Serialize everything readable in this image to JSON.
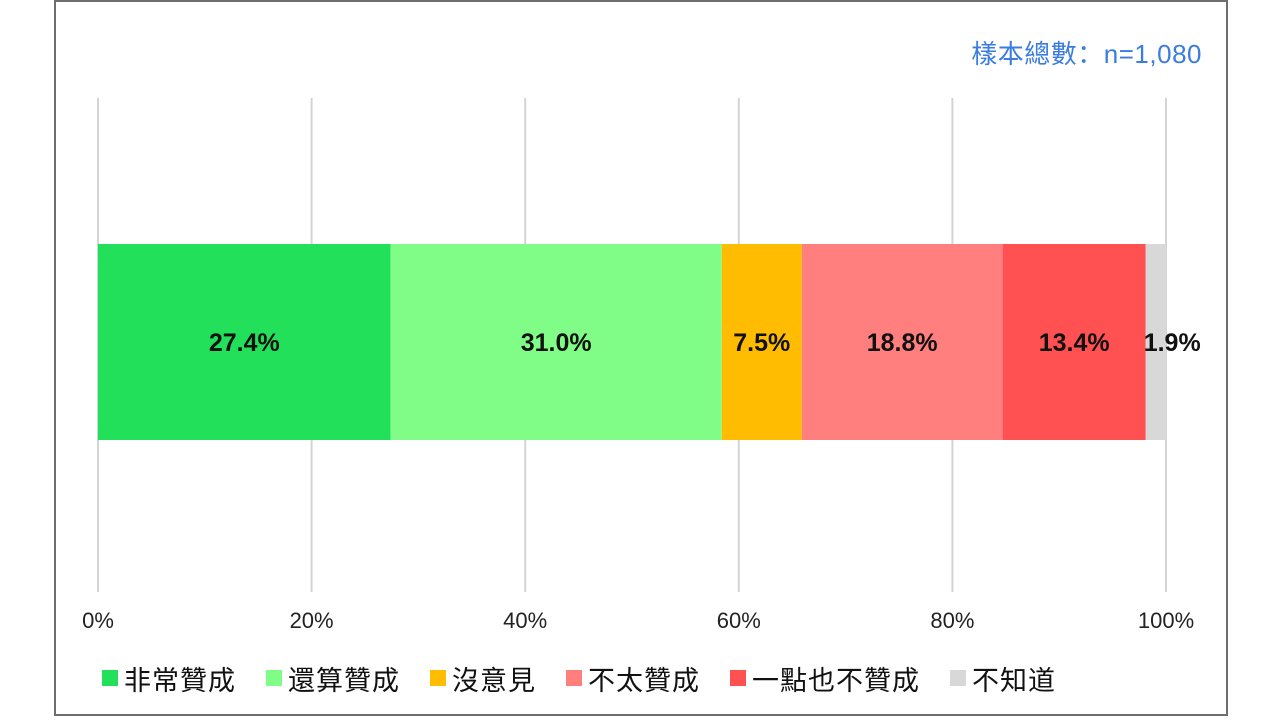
{
  "chart_data": {
    "type": "bar",
    "orientation": "horizontal-stacked",
    "sample_note": "樣本總數：n=1,080",
    "series": [
      {
        "name": "非常贊成",
        "value": 27.4,
        "label": "27.4%",
        "color": "#22e05a"
      },
      {
        "name": "還算贊成",
        "value": 31.0,
        "label": "31.0%",
        "color": "#80fd86"
      },
      {
        "name": "沒意見",
        "value": 7.5,
        "label": "7.5%",
        "color": "#ffbc00"
      },
      {
        "name": "不太贊成",
        "value": 18.8,
        "label": "18.8%",
        "color": "#ff7f7f"
      },
      {
        "name": "一點也不贊成",
        "value": 13.4,
        "label": "13.4%",
        "color": "#ff5151"
      },
      {
        "name": "不知道",
        "value": 1.9,
        "label": "1.9%",
        "color": "#d8d8d8"
      }
    ],
    "xlim": [
      0,
      100
    ],
    "xticks": [
      0,
      20,
      40,
      60,
      80,
      100
    ],
    "xtick_labels": [
      "0%",
      "20%",
      "40%",
      "60%",
      "80%",
      "100%"
    ],
    "grid": true,
    "legend_position": "bottom"
  }
}
